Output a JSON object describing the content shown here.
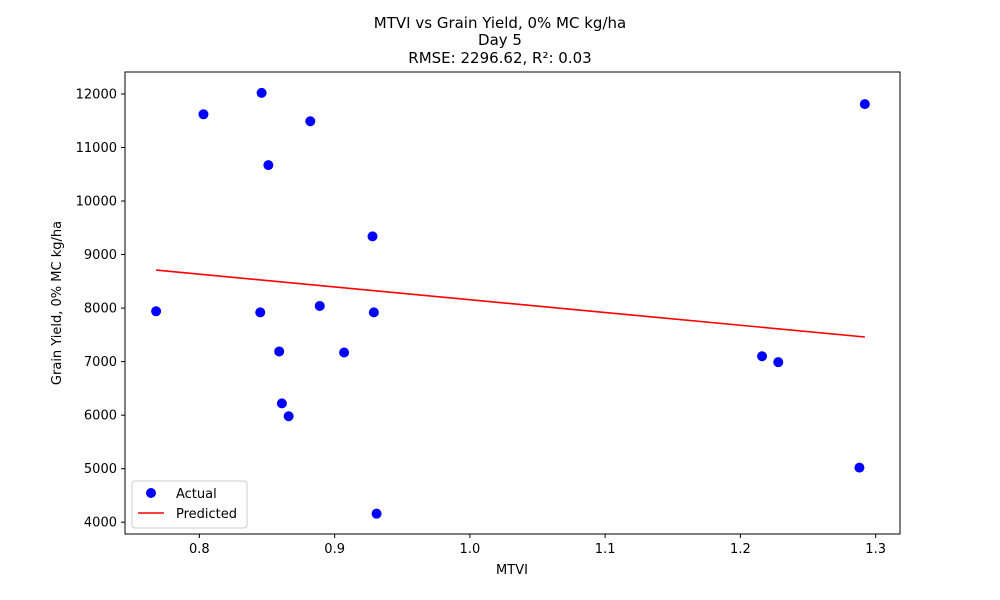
{
  "chart_data": {
    "type": "scatter",
    "title_lines": [
      "MTVI vs Grain Yield, 0% MC kg/ha",
      "Day 5",
      "RMSE: 2296.62, R²: 0.03"
    ],
    "xlabel": "MTVI",
    "ylabel": "Grain Yield, 0% MC kg/ha",
    "xlim": [
      0.745,
      1.318
    ],
    "ylim": [
      3780,
      12410
    ],
    "xticks": [
      0.8,
      0.9,
      1.0,
      1.1,
      1.2,
      1.3
    ],
    "xtick_labels": [
      "0.8",
      "0.9",
      "1.0",
      "1.1",
      "1.2",
      "1.3"
    ],
    "yticks": [
      4000,
      5000,
      6000,
      7000,
      8000,
      9000,
      10000,
      11000,
      12000
    ],
    "ytick_labels": [
      "4000",
      "5000",
      "6000",
      "7000",
      "8000",
      "9000",
      "10000",
      "11000",
      "12000"
    ],
    "grid": false,
    "legend_position": "lower-left",
    "series": [
      {
        "name": "Actual",
        "kind": "scatter",
        "color": "#0000ff",
        "points": [
          {
            "x": 0.768,
            "y": 7940
          },
          {
            "x": 0.803,
            "y": 11620
          },
          {
            "x": 0.845,
            "y": 7920
          },
          {
            "x": 0.846,
            "y": 12020
          },
          {
            "x": 0.851,
            "y": 10670
          },
          {
            "x": 0.859,
            "y": 7190
          },
          {
            "x": 0.861,
            "y": 6220
          },
          {
            "x": 0.866,
            "y": 5980
          },
          {
            "x": 0.882,
            "y": 11490
          },
          {
            "x": 0.889,
            "y": 8040
          },
          {
            "x": 0.907,
            "y": 7170
          },
          {
            "x": 0.928,
            "y": 9340
          },
          {
            "x": 0.929,
            "y": 7920
          },
          {
            "x": 0.931,
            "y": 4160
          },
          {
            "x": 1.216,
            "y": 7100
          },
          {
            "x": 1.228,
            "y": 6990
          },
          {
            "x": 1.288,
            "y": 5020
          },
          {
            "x": 1.292,
            "y": 11810
          }
        ]
      },
      {
        "name": "Predicted",
        "kind": "line",
        "color": "#ff0000",
        "points": [
          {
            "x": 0.768,
            "y": 8710
          },
          {
            "x": 1.292,
            "y": 7460
          }
        ]
      }
    ]
  }
}
